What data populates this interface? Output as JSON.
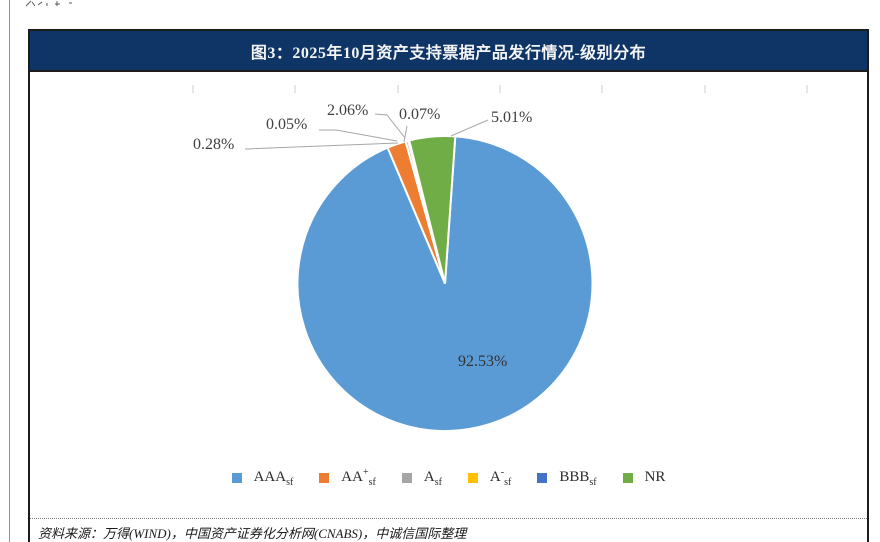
{
  "figure": {
    "title": "图3：2025年10月资产支持票据产品发行情况-级别分布",
    "source": "资料来源：万得(WIND)，中国资产证券化分析网(CNABS)，中诚信国际整理"
  },
  "colors": {
    "title_bar": "#0E3565",
    "leader_line": "#A6A6A6",
    "tick": "#CCCCCC",
    "label_text": "#3F3F3F"
  },
  "chart_data": {
    "type": "pie",
    "title": "图3：2025年10月资产支持票据产品发行情况-级别分布",
    "start_angle_deg": 4,
    "legend_position": "bottom",
    "slices": [
      {
        "name": "AAAsf",
        "legend": {
          "base": "AAA",
          "sup": "",
          "sub": "sf"
        },
        "value": 92.53,
        "label": "92.53%",
        "color": "#5B9BD5"
      },
      {
        "name": "AA+sf",
        "legend": {
          "base": "AA",
          "sup": "+",
          "sub": "sf"
        },
        "value": 2.06,
        "label": "2.06%",
        "color": "#ED7D31"
      },
      {
        "name": "Asf",
        "legend": {
          "base": "A",
          "sup": "",
          "sub": "sf"
        },
        "value": 0.28,
        "label": "0.28%",
        "color": "#A5A5A5"
      },
      {
        "name": "A-sf",
        "legend": {
          "base": "A",
          "sup": "-",
          "sub": "sf"
        },
        "value": 0.05,
        "label": "0.05%",
        "color": "#FFC000"
      },
      {
        "name": "BBBsf",
        "legend": {
          "base": "BBB",
          "sup": "",
          "sub": "sf"
        },
        "value": 0.07,
        "label": "0.07%",
        "color": "#4472C4"
      },
      {
        "name": "NR",
        "legend": {
          "base": "NR",
          "sup": "",
          "sub": ""
        },
        "value": 5.01,
        "label": "5.01%",
        "color": "#70AD47"
      }
    ]
  }
}
